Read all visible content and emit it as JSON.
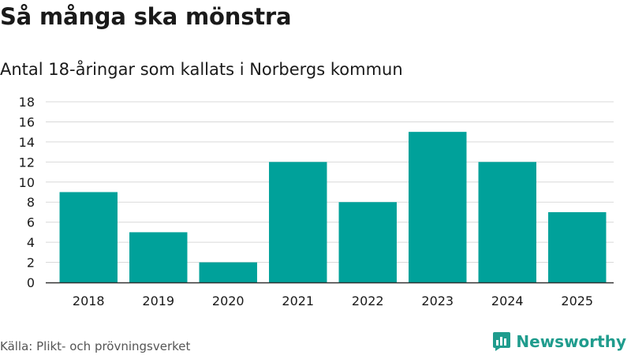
{
  "header": {
    "title": "Så många ska mönstra",
    "subtitle": "Antal 18-åringar som kallats i Norbergs kommun"
  },
  "footer": {
    "source": "Källa: Plikt- och prövningsverket",
    "brand": "Newsworthy"
  },
  "colors": {
    "bar": "#00a19a",
    "grid": "#d9d9d9",
    "axis": "#333333",
    "brand": "#1f9c8d"
  },
  "icons": {
    "brand_logo": "chart-speech-bubble-icon"
  },
  "chart_data": {
    "type": "bar",
    "categories": [
      "2018",
      "2019",
      "2020",
      "2021",
      "2022",
      "2023",
      "2024",
      "2025"
    ],
    "values": [
      9,
      5,
      2,
      12,
      8,
      15,
      12,
      7
    ],
    "title": "Så många ska mönstra",
    "subtitle": "Antal 18-åringar som kallats i Norbergs kommun",
    "xlabel": "",
    "ylabel": "",
    "ylim": [
      0,
      18
    ],
    "yticks": [
      0,
      2,
      4,
      6,
      8,
      10,
      12,
      14,
      16,
      18
    ],
    "grid": true,
    "legend": "none"
  }
}
